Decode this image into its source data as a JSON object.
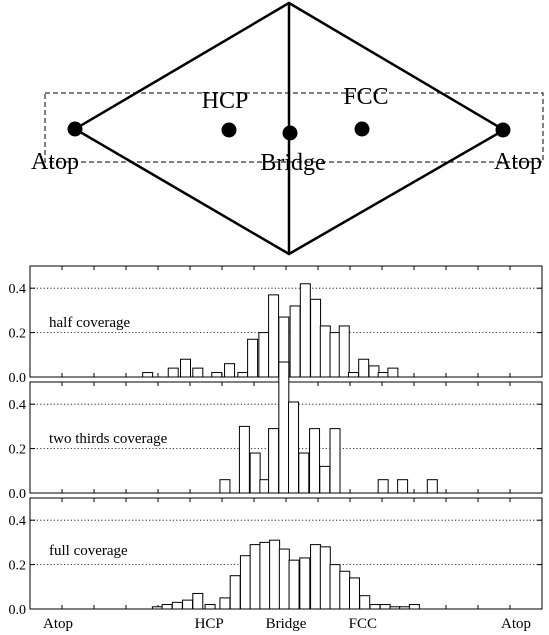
{
  "diagram": {
    "sites": [
      {
        "id": "atop-left",
        "label": "Atop"
      },
      {
        "id": "hcp",
        "label": "HCP"
      },
      {
        "id": "bridge",
        "label": "Bridge"
      },
      {
        "id": "fcc",
        "label": "FCC"
      },
      {
        "id": "atop-right",
        "label": "Atop"
      }
    ]
  },
  "chart_data": [
    {
      "type": "bar",
      "panel_label": "half coverage",
      "ylim": [
        0,
        0.5
      ],
      "yticks": [
        "0.0",
        "0.2",
        "0.4"
      ],
      "grid": "horizontal dotted at 0.2 and 0.4",
      "x_range": [
        0,
        1
      ],
      "bars": [
        {
          "x": 0.22,
          "w": 0.039,
          "y": 0.02
        },
        {
          "x": 0.27,
          "w": 0.039,
          "y": 0.04
        },
        {
          "x": 0.294,
          "w": 0.039,
          "y": 0.08
        },
        {
          "x": 0.318,
          "w": 0.039,
          "y": 0.04
        },
        {
          "x": 0.355,
          "w": 0.039,
          "y": 0.02
        },
        {
          "x": 0.38,
          "w": 0.039,
          "y": 0.06
        },
        {
          "x": 0.406,
          "w": 0.039,
          "y": 0.02
        },
        {
          "x": 0.425,
          "w": 0.039,
          "y": 0.17
        },
        {
          "x": 0.447,
          "w": 0.039,
          "y": 0.2
        },
        {
          "x": 0.466,
          "w": 0.039,
          "y": 0.37
        },
        {
          "x": 0.486,
          "w": 0.039,
          "y": 0.27
        },
        {
          "x": 0.508,
          "w": 0.039,
          "y": 0.32
        },
        {
          "x": 0.528,
          "w": 0.039,
          "y": 0.42
        },
        {
          "x": 0.548,
          "w": 0.039,
          "y": 0.35
        },
        {
          "x": 0.567,
          "w": 0.039,
          "y": 0.23
        },
        {
          "x": 0.586,
          "w": 0.039,
          "y": 0.2
        },
        {
          "x": 0.604,
          "w": 0.039,
          "y": 0.23
        },
        {
          "x": 0.622,
          "w": 0.039,
          "y": 0.02
        },
        {
          "x": 0.642,
          "w": 0.039,
          "y": 0.08
        },
        {
          "x": 0.662,
          "w": 0.039,
          "y": 0.05
        },
        {
          "x": 0.68,
          "w": 0.039,
          "y": 0.02
        },
        {
          "x": 0.699,
          "w": 0.039,
          "y": 0.04
        }
      ]
    },
    {
      "type": "bar",
      "panel_label": "two thirds coverage",
      "ylim": [
        0,
        0.5
      ],
      "yticks": [
        "0.0",
        "0.2",
        "0.4"
      ],
      "grid": "horizontal dotted at 0.2 and 0.4",
      "x_range": [
        0,
        1
      ],
      "bars": [
        {
          "x": 0.371,
          "w": 0.039,
          "y": 0.06
        },
        {
          "x": 0.409,
          "w": 0.039,
          "y": 0.3
        },
        {
          "x": 0.43,
          "w": 0.039,
          "y": 0.18
        },
        {
          "x": 0.449,
          "w": 0.039,
          "y": 0.06
        },
        {
          "x": 0.466,
          "w": 0.039,
          "y": 0.29
        },
        {
          "x": 0.486,
          "w": 0.039,
          "y": 0.59
        },
        {
          "x": 0.505,
          "w": 0.039,
          "y": 0.41
        },
        {
          "x": 0.525,
          "w": 0.039,
          "y": 0.18
        },
        {
          "x": 0.546,
          "w": 0.039,
          "y": 0.29
        },
        {
          "x": 0.566,
          "w": 0.039,
          "y": 0.12
        },
        {
          "x": 0.586,
          "w": 0.039,
          "y": 0.29
        },
        {
          "x": 0.68,
          "w": 0.039,
          "y": 0.06
        },
        {
          "x": 0.718,
          "w": 0.039,
          "y": 0.06
        },
        {
          "x": 0.776,
          "w": 0.039,
          "y": 0.06
        }
      ]
    },
    {
      "type": "bar",
      "panel_label": "full coverage",
      "ylim": [
        0,
        0.5
      ],
      "yticks": [
        "0.0",
        "0.2",
        "0.4"
      ],
      "grid": "horizontal dotted at 0.2 and 0.4",
      "x_range": [
        0,
        1
      ],
      "x_tick_labels": [
        "Atop",
        "HCP",
        "Bridge",
        "FCC",
        "Atop"
      ],
      "x_tick_positions": [
        0.0,
        0.35,
        0.5,
        0.65,
        1.0
      ],
      "bars": [
        {
          "x": 0.239,
          "w": 0.039,
          "y": 0.01
        },
        {
          "x": 0.258,
          "w": 0.039,
          "y": 0.02
        },
        {
          "x": 0.278,
          "w": 0.039,
          "y": 0.03
        },
        {
          "x": 0.298,
          "w": 0.039,
          "y": 0.04
        },
        {
          "x": 0.318,
          "w": 0.039,
          "y": 0.07
        },
        {
          "x": 0.342,
          "w": 0.039,
          "y": 0.02
        },
        {
          "x": 0.371,
          "w": 0.039,
          "y": 0.05
        },
        {
          "x": 0.391,
          "w": 0.039,
          "y": 0.15
        },
        {
          "x": 0.411,
          "w": 0.039,
          "y": 0.24
        },
        {
          "x": 0.43,
          "w": 0.039,
          "y": 0.29
        },
        {
          "x": 0.449,
          "w": 0.039,
          "y": 0.3
        },
        {
          "x": 0.468,
          "w": 0.039,
          "y": 0.31
        },
        {
          "x": 0.487,
          "w": 0.039,
          "y": 0.27
        },
        {
          "x": 0.506,
          "w": 0.039,
          "y": 0.22
        },
        {
          "x": 0.527,
          "w": 0.039,
          "y": 0.23
        },
        {
          "x": 0.548,
          "w": 0.039,
          "y": 0.29
        },
        {
          "x": 0.567,
          "w": 0.039,
          "y": 0.28
        },
        {
          "x": 0.586,
          "w": 0.039,
          "y": 0.2
        },
        {
          "x": 0.605,
          "w": 0.039,
          "y": 0.17
        },
        {
          "x": 0.624,
          "w": 0.039,
          "y": 0.14
        },
        {
          "x": 0.644,
          "w": 0.039,
          "y": 0.06
        },
        {
          "x": 0.664,
          "w": 0.039,
          "y": 0.02
        },
        {
          "x": 0.684,
          "w": 0.039,
          "y": 0.02
        },
        {
          "x": 0.703,
          "w": 0.039,
          "y": 0.01
        },
        {
          "x": 0.722,
          "w": 0.039,
          "y": 0.01
        },
        {
          "x": 0.741,
          "w": 0.039,
          "y": 0.02
        }
      ]
    }
  ]
}
